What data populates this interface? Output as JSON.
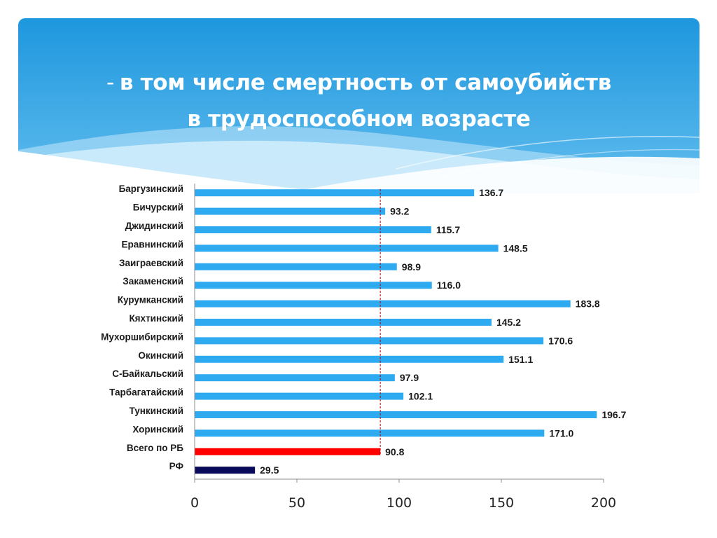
{
  "slide": {
    "title_dash": "-",
    "title_line1": "в том числе смертность от самоубийств",
    "title_line2": "в трудоспособном возрасте"
  },
  "colors": {
    "header_top": "#1e97de",
    "header_bottom": "#8fd3f5",
    "bar_default": "#2eaaf0",
    "bar_rb": "#ff0000",
    "bar_rf": "#0a0a5a",
    "reference_line": "#c00000"
  },
  "chart_data": {
    "type": "bar",
    "orientation": "horizontal",
    "title": "",
    "xlabel": "",
    "ylabel": "",
    "xlim": [
      0,
      200
    ],
    "xticks": [
      "0",
      "50",
      "100",
      "150",
      "200"
    ],
    "grid": false,
    "legend": "none",
    "reference_line": 90.8,
    "categories": [
      "Баргузинский",
      "Бичурский",
      "Джидинский",
      "Еравнинский",
      "Заиграевский",
      "Закаменский",
      "Курумканский",
      "Кяхтинский",
      "Мухоршибирский",
      "Окинский",
      "С-Байкальский",
      "Тарбагатайский",
      "Тункинский",
      "Хоринский",
      "Всего по РБ",
      "РФ"
    ],
    "values": [
      136.7,
      93.2,
      115.7,
      148.5,
      98.9,
      116.0,
      183.8,
      145.2,
      170.6,
      151.1,
      97.9,
      102.1,
      196.7,
      171.0,
      90.8,
      29.5
    ],
    "value_labels": [
      "136.7",
      "93.2",
      "115.7",
      "148.5",
      "98.9",
      "116.0",
      "183.8",
      "145.2",
      "170.6",
      "151.1",
      "97.9",
      "102.1",
      "196.7",
      "171.0",
      "90.8",
      "29.5"
    ],
    "bar_colors": [
      "#2eaaf0",
      "#2eaaf0",
      "#2eaaf0",
      "#2eaaf0",
      "#2eaaf0",
      "#2eaaf0",
      "#2eaaf0",
      "#2eaaf0",
      "#2eaaf0",
      "#2eaaf0",
      "#2eaaf0",
      "#2eaaf0",
      "#2eaaf0",
      "#2eaaf0",
      "#ff0000",
      "#0a0a5a"
    ]
  }
}
